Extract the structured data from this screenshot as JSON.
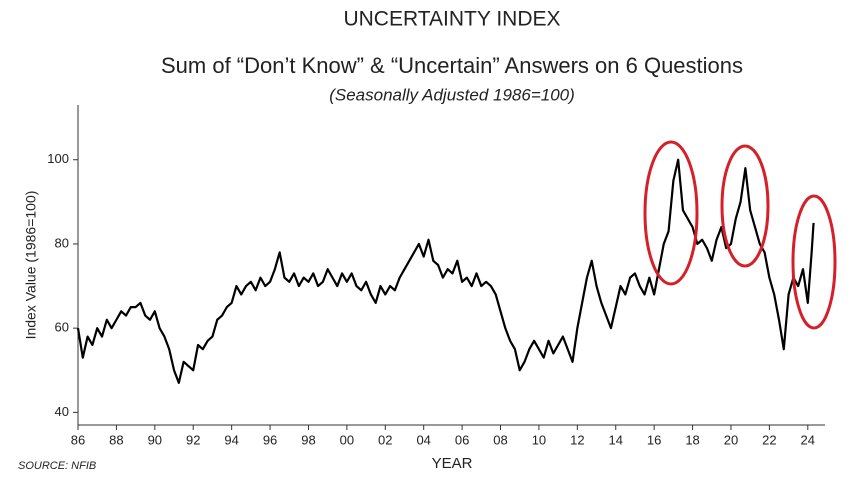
{
  "chart_data": {
    "type": "line",
    "title": "UNCERTAINTY INDEX",
    "subtitle": "Sum of “Don’t Know” & “Uncertain” Answers on 6 Questions",
    "note": "(Seasonally Adjusted 1986=100)",
    "y_label": "Index Value (1986=100)",
    "x_label": "YEAR",
    "source": "SOURCE: NFIB",
    "xlim": [
      1986,
      2025
    ],
    "ylim": [
      37,
      113
    ],
    "yticks": [
      40,
      60,
      80,
      100
    ],
    "xticks": [
      {
        "value": 1986,
        "label": "86"
      },
      {
        "value": 1988,
        "label": "88"
      },
      {
        "value": 1990,
        "label": "90"
      },
      {
        "value": 1992,
        "label": "92"
      },
      {
        "value": 1994,
        "label": "94"
      },
      {
        "value": 1996,
        "label": "96"
      },
      {
        "value": 1998,
        "label": "98"
      },
      {
        "value": 2000,
        "label": "00"
      },
      {
        "value": 2002,
        "label": "02"
      },
      {
        "value": 2004,
        "label": "04"
      },
      {
        "value": 2006,
        "label": "06"
      },
      {
        "value": 2008,
        "label": "08"
      },
      {
        "value": 2010,
        "label": "10"
      },
      {
        "value": 2012,
        "label": "12"
      },
      {
        "value": 2014,
        "label": "14"
      },
      {
        "value": 2016,
        "label": "16"
      },
      {
        "value": 2018,
        "label": "18"
      },
      {
        "value": 2020,
        "label": "20"
      },
      {
        "value": 2022,
        "label": "22"
      },
      {
        "value": 2024,
        "label": "24"
      }
    ],
    "grid": false,
    "x": [
      1986,
      1986.25,
      1986.5,
      1986.75,
      1987,
      1987.25,
      1987.5,
      1987.75,
      1988,
      1988.25,
      1988.5,
      1988.75,
      1989,
      1989.25,
      1989.5,
      1989.75,
      1990,
      1990.25,
      1990.5,
      1990.75,
      1991,
      1991.25,
      1991.5,
      1991.75,
      1992,
      1992.25,
      1992.5,
      1992.75,
      1993,
      1993.25,
      1993.5,
      1993.75,
      1994,
      1994.25,
      1994.5,
      1994.75,
      1995,
      1995.25,
      1995.5,
      1995.75,
      1996,
      1996.25,
      1996.5,
      1996.75,
      1997,
      1997.25,
      1997.5,
      1997.75,
      1998,
      1998.25,
      1998.5,
      1998.75,
      1999,
      1999.25,
      1999.5,
      1999.75,
      2000,
      2000.25,
      2000.5,
      2000.75,
      2001,
      2001.25,
      2001.5,
      2001.75,
      2002,
      2002.25,
      2002.5,
      2002.75,
      2003,
      2003.25,
      2003.5,
      2003.75,
      2004,
      2004.25,
      2004.5,
      2004.75,
      2005,
      2005.25,
      2005.5,
      2005.75,
      2006,
      2006.25,
      2006.5,
      2006.75,
      2007,
      2007.25,
      2007.5,
      2007.75,
      2008,
      2008.25,
      2008.5,
      2008.75,
      2009,
      2009.25,
      2009.5,
      2009.75,
      2010,
      2010.25,
      2010.5,
      2010.75,
      2011,
      2011.25,
      2011.5,
      2011.75,
      2012,
      2012.25,
      2012.5,
      2012.75,
      2013,
      2013.25,
      2013.5,
      2013.75,
      2014,
      2014.25,
      2014.5,
      2014.75,
      2015,
      2015.25,
      2015.5,
      2015.75,
      2016,
      2016.25,
      2016.5,
      2016.75,
      2017,
      2017.25,
      2017.5,
      2017.75,
      2018,
      2018.25,
      2018.5,
      2018.75,
      2019,
      2019.25,
      2019.5,
      2019.75,
      2020,
      2020.25,
      2020.5,
      2020.75,
      2021,
      2021.25,
      2021.5,
      2021.75,
      2022,
      2022.25,
      2022.5,
      2022.75,
      2023,
      2023.25,
      2023.5,
      2023.75,
      2024,
      2024.1,
      2024.2,
      2024.3
    ],
    "series": [
      {
        "name": "Uncertainty Index",
        "color": "#000000",
        "values": [
          60,
          53,
          58,
          56,
          60,
          58,
          62,
          60,
          62,
          64,
          63,
          65,
          65,
          66,
          63,
          62,
          64,
          60,
          58,
          55,
          50,
          47,
          52,
          51,
          50,
          56,
          55,
          57,
          58,
          62,
          63,
          65,
          66,
          70,
          68,
          70,
          71,
          69,
          72,
          70,
          71,
          74,
          78,
          72,
          71,
          73,
          70,
          72,
          71,
          73,
          70,
          71,
          74,
          72,
          70,
          73,
          71,
          73,
          70,
          69,
          71,
          68,
          66,
          70,
          68,
          70,
          69,
          72,
          74,
          76,
          78,
          80,
          77,
          81,
          76,
          75,
          72,
          74,
          73,
          76,
          71,
          72,
          70,
          73,
          70,
          71,
          70,
          68,
          64,
          60,
          57,
          55,
          50,
          52,
          55,
          57,
          55,
          53,
          57,
          54,
          56,
          58,
          55,
          52,
          60,
          66,
          72,
          76,
          70,
          66,
          63,
          60,
          65,
          70,
          68,
          72,
          73,
          70,
          68,
          72,
          68,
          74,
          80,
          83,
          95,
          100,
          88,
          86,
          84,
          80,
          81,
          79,
          76,
          81,
          84,
          79,
          80,
          86,
          90,
          98,
          88,
          84,
          80,
          78,
          72,
          68,
          62,
          55,
          68,
          72,
          70,
          74,
          66,
          72,
          78,
          85
        ]
      }
    ]
  }
}
